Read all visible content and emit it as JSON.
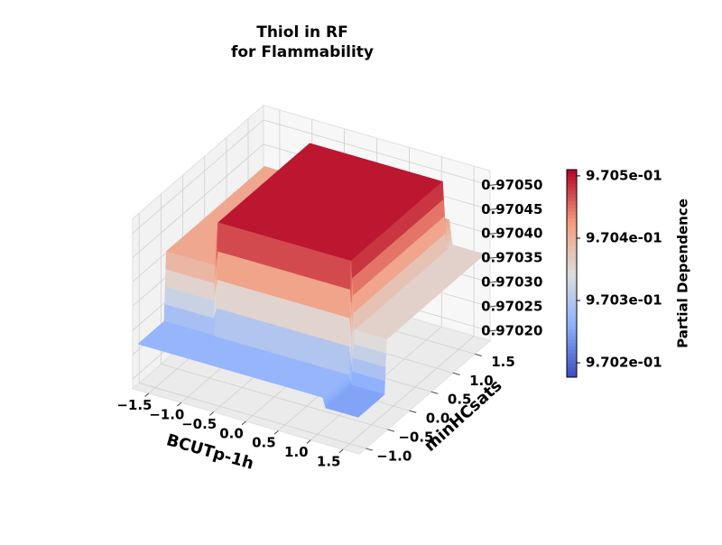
{
  "chart_data": {
    "type": "surface3d",
    "title": [
      "Thiol in RF",
      "for Flammability"
    ],
    "x_label": "BCUTp-1h",
    "y_label": "minHCsats",
    "colorbar_label": "Partial Dependence",
    "x": [
      -1.7,
      -0.95,
      -0.9,
      1.15,
      1.2,
      1.7
    ],
    "y": [
      -1.1,
      -0.5,
      -0.45,
      1.65,
      1.7,
      1.8
    ],
    "z": [
      [
        0.97027,
        0.97027,
        0.97027,
        0.97027,
        0.97025,
        0.97025
      ],
      [
        0.97027,
        0.97027,
        0.97027,
        0.97027,
        0.97025,
        0.97025
      ],
      [
        0.97041,
        0.97041,
        0.9705,
        0.9705,
        0.97036,
        0.97036
      ],
      [
        0.97041,
        0.97041,
        0.9705,
        0.9705,
        0.97036,
        0.97036
      ],
      [
        0.97041,
        0.97041,
        0.97041,
        0.97041,
        0.97036,
        0.97036
      ],
      [
        0.97041,
        0.97041,
        0.97041,
        0.97041,
        0.97036,
        0.97036
      ]
    ],
    "xlim": [
      -1.75,
      1.75
    ],
    "ylim": [
      -1.15,
      1.85
    ],
    "zlim": [
      0.97018,
      0.97053
    ],
    "xticks": [
      {
        "value": -1.5,
        "label": "−1.5"
      },
      {
        "value": -1.0,
        "label": "−1.0"
      },
      {
        "value": -0.5,
        "label": "−0.5"
      },
      {
        "value": 0.0,
        "label": "0.0"
      },
      0.5,
      {
        "value": 1.0,
        "label": "1.0"
      },
      1.5
    ],
    "yticks": [
      {
        "value": -1.0,
        "label": "−1.0"
      },
      {
        "value": -0.5,
        "label": "−0.5"
      },
      {
        "value": 0.0,
        "label": "0.0"
      },
      0.5,
      {
        "value": 1.0,
        "label": "1.0"
      },
      1.5
    ],
    "zticks": [
      {
        "value": 0.9702,
        "label": "0.97020"
      },
      {
        "value": 0.97025,
        "label": "0.97025"
      },
      {
        "value": 0.9703,
        "label": "0.97030"
      },
      {
        "value": 0.97035,
        "label": "0.97035"
      },
      {
        "value": 0.9704,
        "label": "0.97040"
      },
      {
        "value": 0.97045,
        "label": "0.97045"
      },
      {
        "value": 0.9705,
        "label": "0.97050"
      }
    ],
    "colormap": [
      "#3b4cc0",
      "#8db0fe",
      "#dddddd",
      "#f49a7b",
      "#b40426"
    ],
    "clim": [
      0.970177,
      0.97051
    ],
    "colorbar_ticks": [
      {
        "value": 0.9702,
        "label": "9.702e-01"
      },
      {
        "value": 0.9703,
        "label": "9.703e-01"
      },
      {
        "value": 0.9704,
        "label": "9.704e-01"
      },
      {
        "value": 0.9705,
        "label": "9.705e-01"
      }
    ],
    "grid": true
  }
}
